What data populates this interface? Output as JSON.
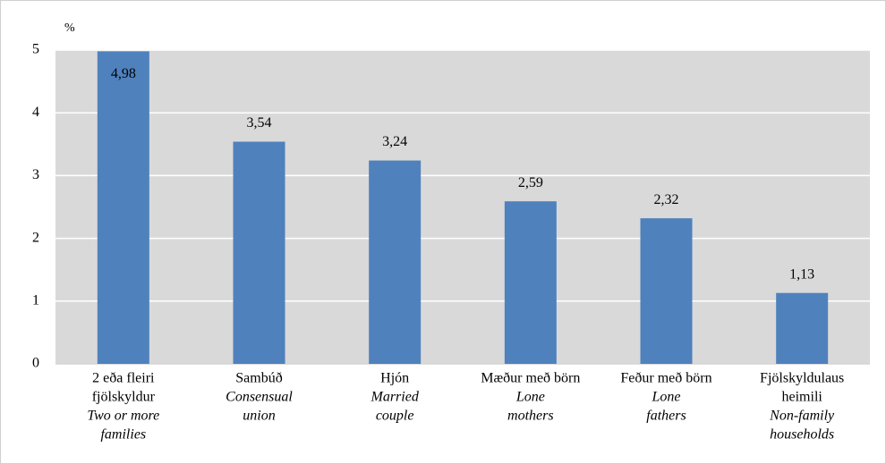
{
  "chart_data": {
    "type": "bar",
    "y_label": "%",
    "categories": [
      [
        "2 eða fleiri",
        "fjölskyldur"
      ],
      [
        "Sambúð"
      ],
      [
        "Hjón"
      ],
      [
        "Mæður með börn"
      ],
      [
        "Feður með börn"
      ],
      [
        "Fjölskyldulaus",
        "heimili"
      ]
    ],
    "categories_en": [
      [
        "Two or more",
        "families"
      ],
      [
        "Consensual",
        "union"
      ],
      [
        "Married",
        "couple"
      ],
      [
        "Lone",
        "mothers"
      ],
      [
        "Lone",
        "fathers"
      ],
      [
        "Non-family",
        "households"
      ]
    ],
    "values": [
      4.98,
      3.54,
      3.24,
      2.59,
      2.32,
      1.13
    ],
    "value_labels": [
      "4,98",
      "3,54",
      "3,24",
      "2,59",
      "2,32",
      "1,13"
    ],
    "color": "#4f81bd",
    "ylim": [
      0,
      5
    ],
    "yticks": [
      0,
      1,
      2,
      3,
      4,
      5
    ],
    "grid": true
  }
}
